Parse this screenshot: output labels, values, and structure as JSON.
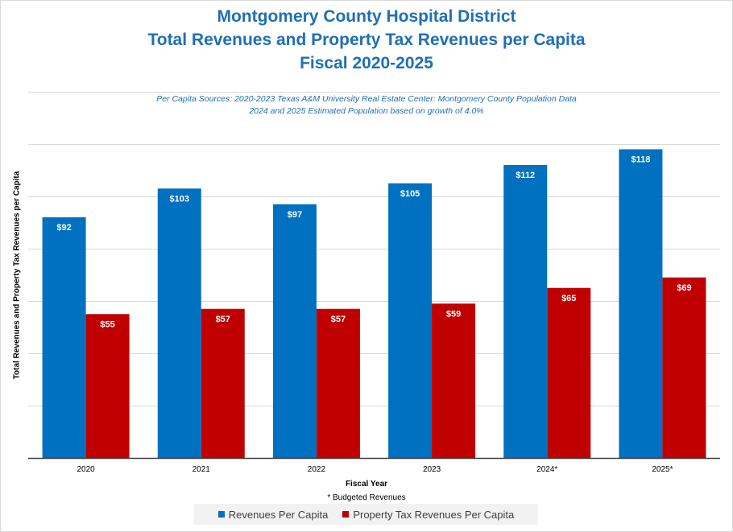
{
  "header": {
    "title_line1": "Montgomery County Hospital District",
    "title_line2": "Total Revenues and Property Tax Revenues per Capita",
    "title_line3": "Fiscal 2020-2025",
    "source_line1": "Per Capita Sources: 2020-2023 Texas A&M University Real Estate Center: Montgomery County Population Data",
    "source_line2": "2024 and 2025 Estimated Population based on growth of 4.0%"
  },
  "footnote": "* Budgeted Revenues",
  "chart_data": {
    "type": "bar",
    "title": "Montgomery County Hospital District Total Revenues and Property Tax Revenues per Capita Fiscal 2020-2025",
    "xlabel": "Fiscal Year",
    "ylabel": "Total Revenues and Property Tax Revenues  per Capita",
    "categories": [
      "2020",
      "2021",
      "2022",
      "2023",
      "2024*",
      "2025*"
    ],
    "series": [
      {
        "name": "Revenues Per Capita",
        "color": "#0070c0",
        "values": [
          92,
          103,
          97,
          105,
          112,
          118
        ],
        "labels": [
          "$92",
          "$103",
          "$97",
          "$105",
          "$112",
          "$118"
        ]
      },
      {
        "name": "Property Tax Revenues Per Capita",
        "color": "#c00000",
        "values": [
          55,
          57,
          57,
          59,
          65,
          69
        ],
        "labels": [
          "$55",
          "$57",
          "$57",
          "$59",
          "$65",
          "$69"
        ]
      }
    ],
    "ylim": [
      0,
      140
    ],
    "ytick_step": 20,
    "grid": true,
    "legend": "bottom"
  }
}
